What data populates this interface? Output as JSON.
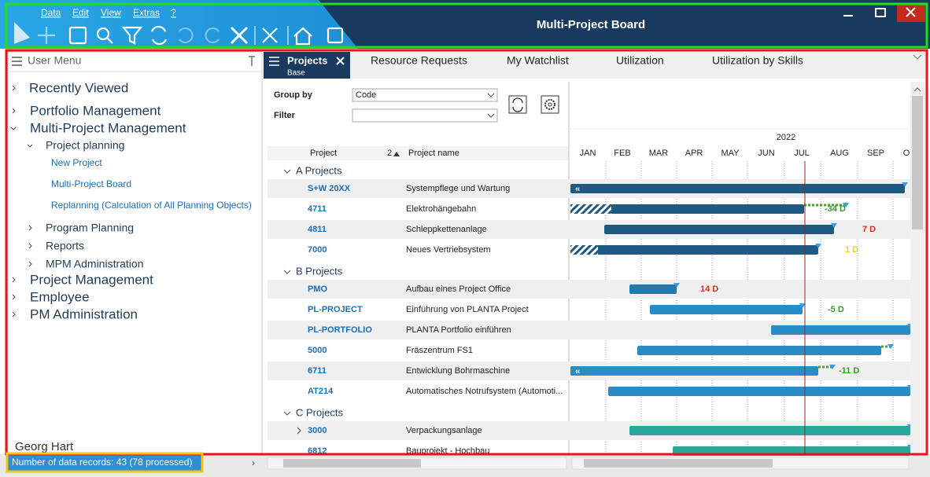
{
  "menu": [
    "Data",
    "Edit",
    "View",
    "Extras",
    "?"
  ],
  "title": "Multi-Project Board",
  "sidebar": {
    "header": "User Menu",
    "items": [
      {
        "label": "Recently Viewed"
      },
      {
        "label": "Portfolio Management"
      },
      {
        "label": "Multi-Project Management",
        "children": [
          {
            "label": "Project planning",
            "children": [
              {
                "label": "New Project"
              },
              {
                "label": "Multi-Project Board"
              },
              {
                "label": "Replanning (Calculation of All Planning Objects)"
              }
            ]
          },
          {
            "label": "Program Planning"
          },
          {
            "label": "Reports"
          },
          {
            "label": "MPM Administration"
          }
        ]
      },
      {
        "label": "Project Management"
      },
      {
        "label": "Employee"
      },
      {
        "label": "PM Administration"
      }
    ],
    "user": "Georg Hart"
  },
  "status": "Number of data records:  43 (78 processed)",
  "tabs": [
    {
      "label": "Projects",
      "sub": "Base"
    },
    {
      "label": "Resource Requests"
    },
    {
      "label": "My Watchlist"
    },
    {
      "label": "Utilization"
    },
    {
      "label": "Utilization by Skills"
    }
  ],
  "form": {
    "group_label": "Group by",
    "group_value": "Code",
    "filter_label": "Filter"
  },
  "table": {
    "headers": [
      "Project",
      "2",
      "Project name"
    ],
    "groups": [
      {
        "name": "A Projects",
        "rows": [
          {
            "id": "S+W 20XX",
            "name": "Systempflege und Wartung"
          },
          {
            "id": "4711",
            "name": "Elektrohängebahn",
            "delay": {
              "text": "-34 D",
              "color": "#3a9a2a"
            }
          },
          {
            "id": "4811",
            "name": "Schleppkettenanlage",
            "delay": {
              "text": "7 D",
              "color": "#e0301e"
            }
          },
          {
            "id": "7000",
            "name": "Neues Vertriebsystem",
            "delay": {
              "text": "1 D",
              "color": "#f2d21a"
            }
          }
        ]
      },
      {
        "name": "B Projects",
        "rows": [
          {
            "id": "PMO",
            "name": "Aufbau eines Project Office",
            "delay": {
              "text": "14 D",
              "color": "#e0301e"
            }
          },
          {
            "id": "PL-PROJECT",
            "name": "Einführung von PLANTA Project",
            "delay": {
              "text": "-5 D",
              "color": "#3a9a2a"
            }
          },
          {
            "id": "PL-PORTFOLIO",
            "name": "PLANTA Portfolio einführen"
          },
          {
            "id": "5000",
            "name": "Fräszentrum FS1"
          },
          {
            "id": "6711",
            "name": "Entwicklung Bohrmaschine",
            "delay": {
              "text": "-11 D",
              "color": "#3a9a2a"
            }
          },
          {
            "id": "AT214",
            "name": "Automatisches Notrufsystem (Automoti..."
          }
        ]
      },
      {
        "name": "C Projects",
        "rows": [
          {
            "id": "3000",
            "name": "Verpackungsanlage"
          },
          {
            "id": "6812",
            "name": "Bauprojekt - Hochbau"
          }
        ]
      }
    ]
  },
  "timeline": {
    "year": "2022",
    "months": [
      "JAN",
      "FEB",
      "MAR",
      "APR",
      "MAY",
      "JUN",
      "JUL",
      "AUG",
      "SEP",
      "O"
    ]
  }
}
